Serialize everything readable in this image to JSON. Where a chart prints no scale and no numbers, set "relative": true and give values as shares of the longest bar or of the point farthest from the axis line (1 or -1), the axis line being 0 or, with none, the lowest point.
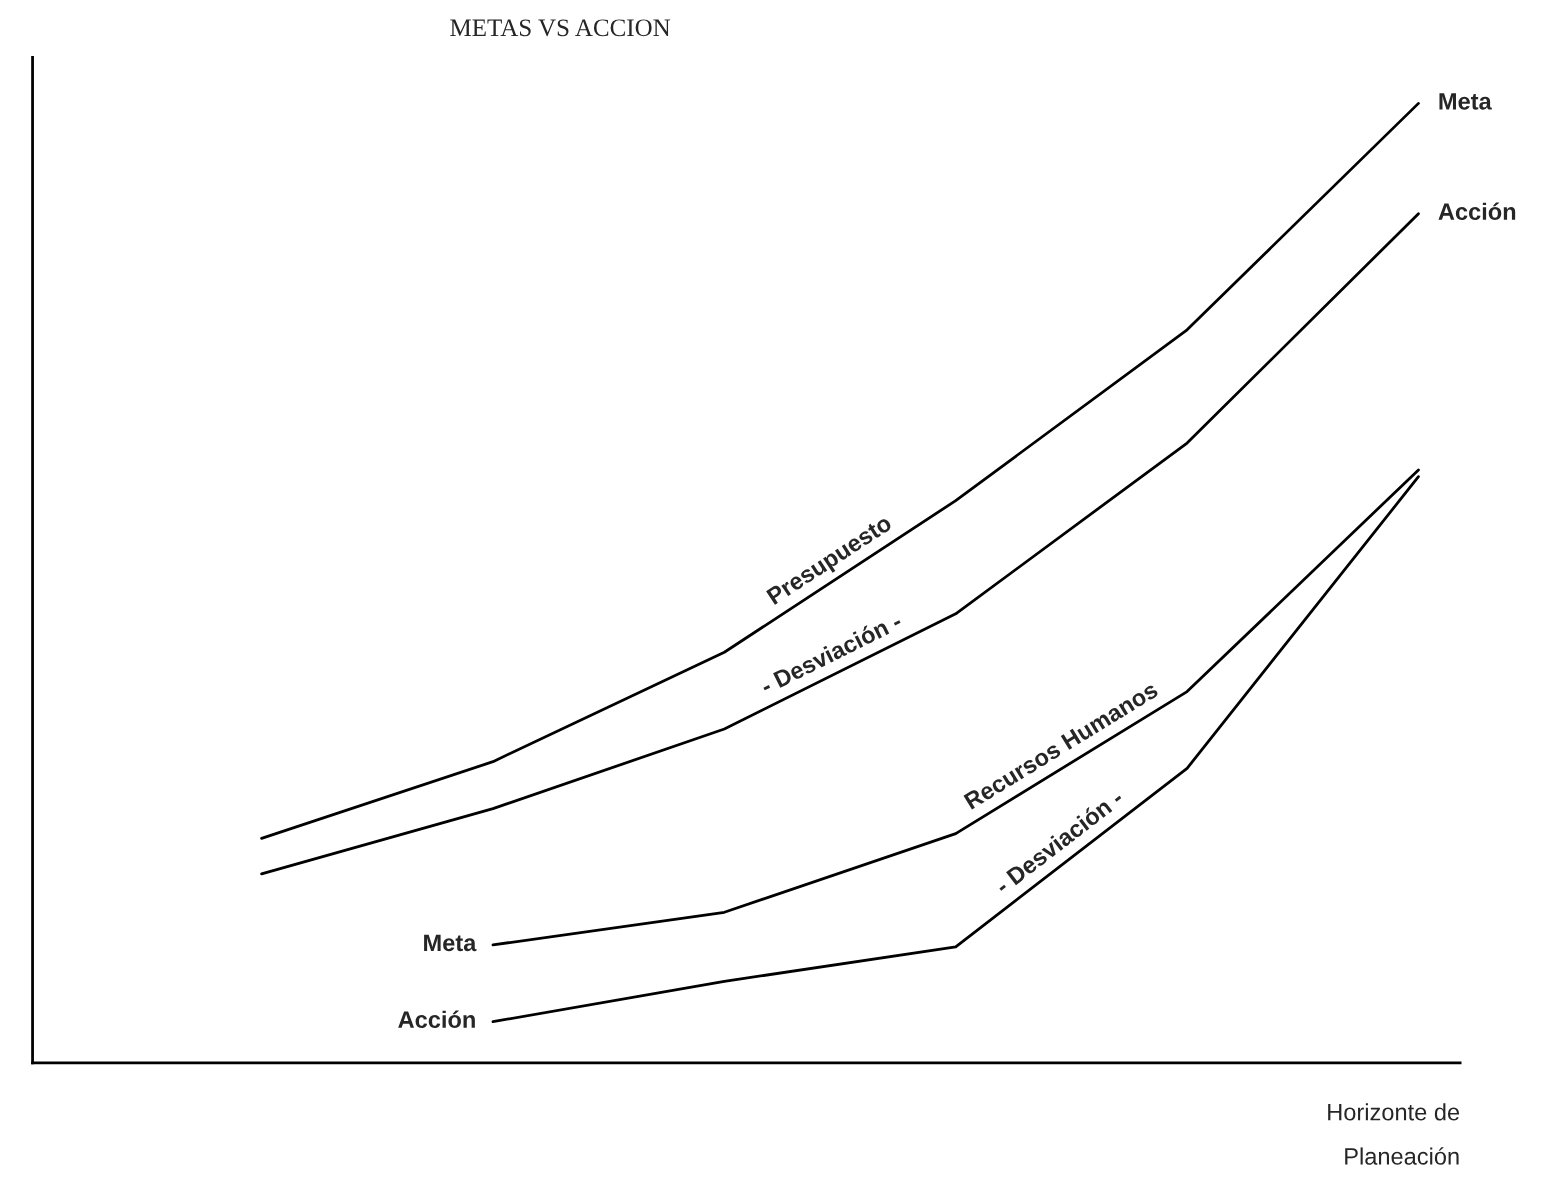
{
  "chart_data": {
    "type": "line",
    "relative": true,
    "title": "METAS VS ACCION",
    "xlabel": "Horizonte de\nPlaneación",
    "line_style": "solid",
    "marker": "none",
    "categories": [
      null,
      null,
      null,
      null,
      null,
      null
    ],
    "series": [
      {
        "name": "Meta",
        "color": "#000000",
        "values": [
          0.234,
          0.314,
          0.428,
          0.586,
          0.764,
          1.0
        ]
      },
      {
        "name": "Acción",
        "color": "#000000",
        "values": [
          0.197,
          0.265,
          0.348,
          0.468,
          0.646,
          0.885
        ]
      },
      {
        "name": "Meta",
        "color": "#000000",
        "values": [
          null,
          0.123,
          0.157,
          0.239,
          0.387,
          0.618
        ]
      },
      {
        "name": "Acción",
        "color": "#000000",
        "values": [
          null,
          0.043,
          0.085,
          0.121,
          0.307,
          0.611
        ]
      }
    ],
    "annotations": [
      "Presupuesto",
      "- Desviación -",
      "Recursos Humanos",
      "- Desviación -"
    ]
  }
}
